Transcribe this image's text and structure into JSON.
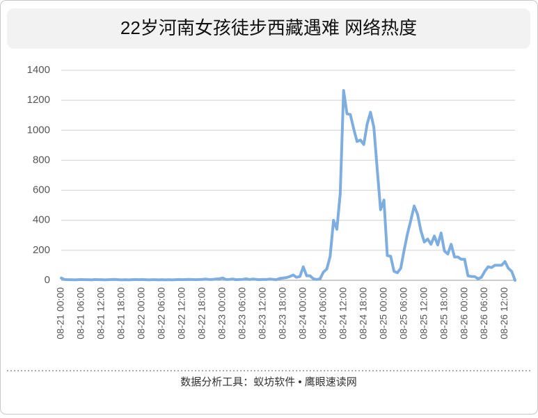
{
  "chart_data": {
    "type": "line",
    "title": "22岁河南女孩徒步西藏遇难 网络热度",
    "footer": "数据分析工具：蚁坊软件 • 鹰眼速读网",
    "categories": [
      "08-21 00:00",
      null,
      null,
      null,
      null,
      null,
      "08-21 06:00",
      null,
      null,
      null,
      null,
      null,
      "08-21 12:00",
      null,
      null,
      null,
      null,
      null,
      "08-21 18:00",
      null,
      null,
      null,
      null,
      null,
      "08-22 00:00",
      null,
      null,
      null,
      null,
      null,
      "08-22 06:00",
      null,
      null,
      null,
      null,
      null,
      "08-22 12:00",
      null,
      null,
      null,
      null,
      null,
      "08-22 18:00",
      null,
      null,
      null,
      null,
      null,
      "08-23 00:00",
      null,
      null,
      null,
      null,
      null,
      "08-23 06:00",
      null,
      null,
      null,
      null,
      null,
      "08-23 12:00",
      null,
      null,
      null,
      null,
      null,
      "08-23 18:00",
      null,
      null,
      null,
      null,
      null,
      "08-24 00:00",
      null,
      null,
      null,
      null,
      null,
      "08-24 06:00",
      null,
      null,
      null,
      null,
      null,
      "08-24 12:00",
      null,
      null,
      null,
      null,
      null,
      "08-24 18:00",
      null,
      null,
      null,
      null,
      null,
      "08-25 00:00",
      null,
      null,
      null,
      null,
      null,
      "08-25 06:00",
      null,
      null,
      null,
      null,
      null,
      "08-25 12:00",
      null,
      null,
      null,
      null,
      null,
      "08-25 18:00",
      null,
      null,
      null,
      null,
      null,
      "08-26 00:00",
      null,
      null,
      null,
      null,
      null,
      "08-26 06:00",
      null,
      null,
      null,
      null,
      null,
      "08-26 12:00",
      null,
      null,
      null
    ],
    "values": [
      15,
      5,
      4,
      4,
      3,
      4,
      5,
      4,
      4,
      3,
      5,
      4,
      4,
      3,
      4,
      5,
      6,
      4,
      3,
      4,
      3,
      4,
      5,
      4,
      5,
      4,
      3,
      4,
      4,
      3,
      4,
      3,
      4,
      3,
      4,
      5,
      4,
      5,
      6,
      5,
      4,
      5,
      6,
      8,
      5,
      6,
      8,
      10,
      15,
      5,
      6,
      8,
      4,
      5,
      6,
      10,
      5,
      8,
      6,
      4,
      6,
      5,
      8,
      6,
      4,
      12,
      15,
      18,
      25,
      35,
      20,
      25,
      90,
      30,
      30,
      10,
      5,
      10,
      55,
      75,
      160,
      400,
      340,
      580,
      1265,
      1110,
      1105,
      1010,
      925,
      935,
      905,
      1040,
      1120,
      1020,
      740,
      470,
      535,
      165,
      160,
      60,
      50,
      80,
      200,
      310,
      400,
      495,
      440,
      330,
      255,
      275,
      240,
      295,
      235,
      315,
      195,
      175,
      240,
      155,
      155,
      140,
      140,
      30,
      25,
      25,
      10,
      20,
      60,
      90,
      85,
      100,
      100,
      100,
      125,
      80,
      60,
      0
    ],
    "color": "#7eaee0",
    "ylim": [
      0,
      1400
    ],
    "yticks": [
      0,
      200,
      400,
      600,
      800,
      1000,
      1200,
      1400
    ],
    "grid": true
  }
}
